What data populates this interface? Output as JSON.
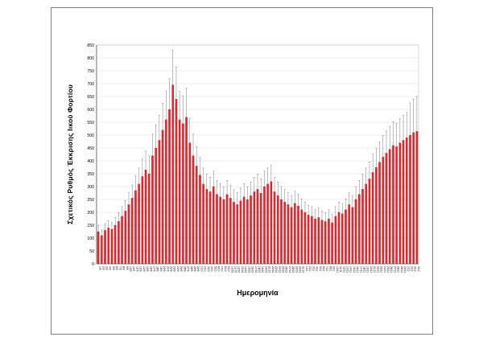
{
  "chart_data": {
    "type": "bar",
    "title": "",
    "ylabel": "Σχετικός Ρυθμός Έκκρισης Ιικού Φορτίου",
    "xlabel": "Ημερομηνία",
    "ylim": [
      0,
      850
    ],
    "ytick_step": 50,
    "grid": true,
    "legend": "none",
    "bar_color": "#e8232a",
    "error_color": "#7f7f7f",
    "grid_color": "#d9d9d9",
    "axis_color": "#595959",
    "categories": [
      "1/9",
      "2/9",
      "3/9",
      "4/9",
      "5/9",
      "6/9",
      "7/9",
      "8/9",
      "9/9",
      "10/9",
      "11/9",
      "12/9",
      "13/9",
      "14/9",
      "15/9",
      "16/9",
      "17/9",
      "18/9",
      "19/9",
      "20/9",
      "21/9",
      "22/9",
      "23/9",
      "24/9",
      "25/9",
      "26/9",
      "27/9",
      "28/9",
      "29/9",
      "30/9",
      "1/10",
      "2/10",
      "3/10",
      "4/10",
      "5/10",
      "6/10",
      "7/10",
      "8/10",
      "9/10",
      "10/10",
      "11/10",
      "12/10",
      "13/10",
      "14/10",
      "15/10",
      "16/10",
      "17/10",
      "18/10",
      "19/10",
      "20/10",
      "21/10",
      "22/10",
      "23/10",
      "24/10",
      "25/10",
      "26/10",
      "27/10",
      "28/10",
      "29/10",
      "30/10",
      "31/10",
      "1/11",
      "2/11",
      "3/11",
      "4/11",
      "5/11",
      "6/11",
      "7/11",
      "8/11",
      "9/11",
      "10/11",
      "11/11",
      "12/11",
      "13/11",
      "14/11",
      "15/11",
      "16/11",
      "17/11",
      "18/11",
      "19/11",
      "20/11",
      "21/11",
      "22/11",
      "23/11",
      "24/11",
      "25/11",
      "26/11",
      "27/11",
      "28/11",
      "29/11",
      "30/11",
      "1/12",
      "2/12",
      "3/12",
      "4/12"
    ],
    "values": [
      125,
      110,
      130,
      140,
      135,
      150,
      165,
      185,
      205,
      230,
      255,
      285,
      310,
      340,
      365,
      350,
      420,
      450,
      480,
      520,
      560,
      600,
      695,
      640,
      560,
      545,
      570,
      470,
      420,
      380,
      345,
      310,
      290,
      280,
      300,
      270,
      260,
      250,
      270,
      255,
      240,
      230,
      245,
      260,
      250,
      265,
      280,
      290,
      275,
      300,
      310,
      320,
      280,
      265,
      250,
      240,
      230,
      220,
      235,
      225,
      210,
      200,
      190,
      185,
      175,
      180,
      170,
      165,
      175,
      160,
      185,
      200,
      195,
      210,
      230,
      220,
      250,
      270,
      290,
      310,
      330,
      355,
      375,
      395,
      415,
      430,
      445,
      460,
      455,
      470,
      480,
      490,
      500,
      510,
      515
    ],
    "error_upper": [
      25,
      22,
      26,
      28,
      27,
      30,
      33,
      37,
      41,
      46,
      51,
      57,
      62,
      68,
      73,
      70,
      84,
      90,
      96,
      104,
      112,
      120,
      135,
      125,
      110,
      108,
      112,
      94,
      84,
      76,
      69,
      62,
      58,
      56,
      60,
      54,
      52,
      50,
      54,
      51,
      48,
      46,
      49,
      52,
      50,
      53,
      56,
      58,
      55,
      60,
      62,
      64,
      56,
      53,
      50,
      48,
      46,
      44,
      47,
      45,
      42,
      40,
      38,
      37,
      35,
      36,
      34,
      33,
      35,
      32,
      37,
      40,
      39,
      42,
      46,
      44,
      50,
      54,
      58,
      62,
      66,
      71,
      75,
      79,
      83,
      86,
      89,
      92,
      91,
      94,
      96,
      98,
      125,
      130,
      135
    ]
  }
}
